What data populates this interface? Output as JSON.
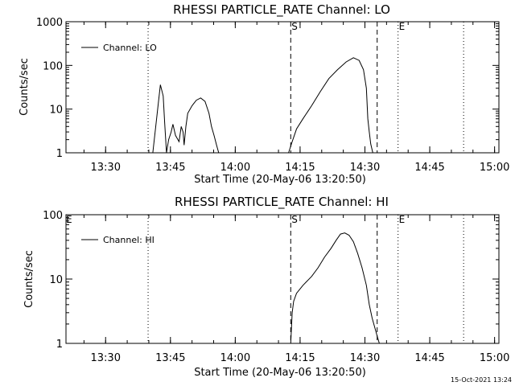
{
  "chart_data": [
    {
      "type": "line",
      "title": "RHESSI PARTICLE_RATE Channel: LO",
      "xlabel": "Start Time (20-May-06 13:20:50)",
      "ylabel": "Counts/sec",
      "yscale": "log",
      "ylim": [
        1,
        1000
      ],
      "xlim": [
        "13:20:50",
        "15:01:00"
      ],
      "x_ticks": [
        "13:30",
        "13:45",
        "14:00",
        "14:15",
        "14:30",
        "14:45",
        "15:00"
      ],
      "y_ticks": [
        "1",
        "10",
        "100",
        "1000"
      ],
      "legend": {
        "position": "top-left",
        "entries": [
          "Channel: LO"
        ]
      },
      "markers": [
        {
          "label": "",
          "time": "13:39:50",
          "style": "dotted"
        },
        {
          "label": "S",
          "time": "14:12:50",
          "style": "dashed"
        },
        {
          "label": "",
          "time": "14:32:50",
          "style": "dashed"
        },
        {
          "label": "E",
          "time": "14:37:40",
          "style": "dotted"
        },
        {
          "label": "",
          "time": "14:52:50",
          "style": "dotted"
        }
      ],
      "series": [
        {
          "name": "Channel: LO",
          "x": [
            "13:40:55",
            "13:42:40",
            "13:43:20",
            "13:43:40",
            "13:44:05",
            "13:44:35",
            "13:45:10",
            "13:45:35",
            "13:46:10",
            "13:47:00",
            "13:47:30",
            "13:47:55",
            "13:48:10",
            "13:48:35",
            "13:49:00",
            "13:50:00",
            "13:51:00",
            "13:52:00",
            "13:53:00",
            "13:53:55",
            "13:54:30",
            "13:55:05",
            "13:55:40",
            "13:56:10"
          ],
          "y": [
            1,
            36,
            20,
            5,
            1,
            2,
            3,
            4.5,
            2.5,
            1.8,
            4,
            3,
            1.5,
            4,
            8,
            12,
            16,
            18,
            15,
            8,
            4,
            2.5,
            1.5,
            1
          ]
        },
        {
          "name": "Channel: LO",
          "x": [
            "14:12:20",
            "14:13:10",
            "14:14:10",
            "14:15:40",
            "14:17:40",
            "14:19:40",
            "14:21:40",
            "14:23:40",
            "14:25:40",
            "14:27:20",
            "14:28:40",
            "14:29:40",
            "14:30:20",
            "14:30:40",
            "14:31:00",
            "14:31:20",
            "14:31:50"
          ],
          "y": [
            1,
            1.8,
            3.5,
            6,
            12,
            25,
            50,
            80,
            120,
            150,
            130,
            80,
            30,
            6,
            3,
            1.6,
            1
          ]
        }
      ]
    },
    {
      "type": "line",
      "title": "RHESSI PARTICLE_RATE Channel: HI",
      "xlabel": "Start Time (20-May-06 13:20:50)",
      "ylabel": "Counts/sec",
      "yscale": "log",
      "ylim": [
        1,
        100
      ],
      "xlim": [
        "13:20:50",
        "15:01:00"
      ],
      "x_ticks": [
        "13:30",
        "13:45",
        "14:00",
        "14:15",
        "14:30",
        "14:45",
        "15:00"
      ],
      "y_ticks": [
        "1",
        "10",
        "100"
      ],
      "legend": {
        "position": "top-left",
        "entries": [
          "Channel: HI"
        ]
      },
      "markers": [
        {
          "label": "",
          "time": "13:39:50",
          "style": "dotted"
        },
        {
          "label": "S",
          "time": "14:12:50",
          "style": "dashed"
        },
        {
          "label": "",
          "time": "14:32:50",
          "style": "dashed"
        },
        {
          "label": "E",
          "time": "14:37:40",
          "style": "dotted"
        },
        {
          "label": "",
          "time": "14:52:50",
          "style": "dotted"
        }
      ],
      "series": [
        {
          "name": "Channel: HI",
          "x": [
            "14:12:50",
            "14:13:10",
            "14:13:30",
            "14:14:10",
            "14:15:40",
            "14:17:40",
            "14:19:10",
            "14:20:40",
            "14:22:10",
            "14:23:20",
            "14:24:20",
            "14:25:20",
            "14:26:20",
            "14:27:20",
            "14:28:20",
            "14:29:20",
            "14:30:20",
            "14:31:00",
            "14:31:40",
            "14:32:50",
            "14:33:20"
          ],
          "y": [
            1,
            3,
            4.5,
            6,
            8,
            11,
            15,
            22,
            30,
            40,
            50,
            52,
            48,
            38,
            25,
            15,
            8,
            4,
            2.5,
            1.3,
            1
          ]
        }
      ]
    }
  ],
  "footer": {
    "timestamp": "15-Oct-2021 13:24"
  },
  "extra_label": "E"
}
